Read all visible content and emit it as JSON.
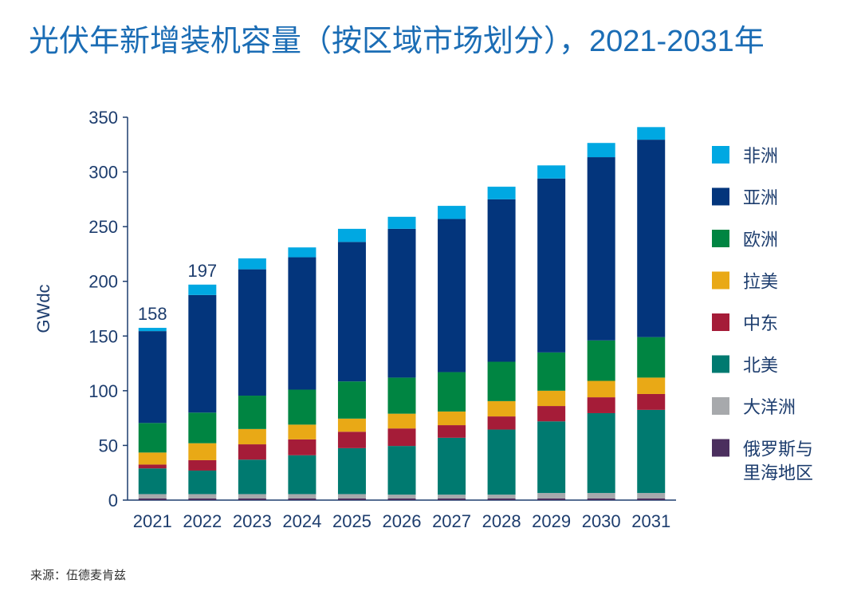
{
  "title": "光伏年新增装机容量（按区域市场划分），2021-2031年",
  "source": "来源：伍德麦肯兹",
  "chart_data": {
    "type": "bar",
    "stacked": true,
    "title": "光伏年新增装机容量（按区域市场划分），2021-2031年",
    "ylabel": "GWdc",
    "ylim": [
      0,
      350
    ],
    "yticks": [
      0,
      50,
      100,
      150,
      200,
      250,
      300,
      350
    ],
    "grid": false,
    "legend_position": "right",
    "categories": [
      "2021",
      "2022",
      "2023",
      "2024",
      "2025",
      "2026",
      "2027",
      "2028",
      "2029",
      "2030",
      "2031"
    ],
    "series": [
      {
        "name": "俄罗斯与里海地区",
        "color": "#4b2f5e",
        "values": [
          1.5,
          1.5,
          1.5,
          1.5,
          1.5,
          1.5,
          1.5,
          1.5,
          1.5,
          1.5,
          1.5
        ]
      },
      {
        "name": "大洋洲",
        "color": "#a7a9ac",
        "values": [
          4,
          4,
          4,
          4,
          4,
          3.5,
          3.5,
          3.5,
          5,
          5,
          5
        ]
      },
      {
        "name": "北美",
        "color": "#007a70",
        "values": [
          23.5,
          21.5,
          31.5,
          35.5,
          42,
          44.5,
          52,
          59.5,
          65.5,
          73,
          76
        ]
      },
      {
        "name": "中东",
        "color": "#a51c38",
        "values": [
          3.5,
          9.5,
          14,
          14.5,
          15,
          16,
          11.5,
          12,
          14,
          14.5,
          14.5
        ]
      },
      {
        "name": "拉美",
        "color": "#e9a916",
        "values": [
          11,
          15.5,
          14,
          13.5,
          12,
          13.5,
          12.5,
          14,
          14,
          15,
          15
        ]
      },
      {
        "name": "欧洲",
        "color": "#008542",
        "values": [
          27,
          28,
          30.5,
          32,
          34,
          33,
          36,
          36,
          35,
          37,
          37
        ]
      },
      {
        "name": "亚洲",
        "color": "#03357c",
        "values": [
          84,
          107.5,
          115.5,
          121,
          127.5,
          136,
          140,
          148.5,
          159,
          167.5,
          180.5
        ]
      },
      {
        "name": "非洲",
        "color": "#00a8e2",
        "values": [
          3,
          9.5,
          10,
          9,
          12,
          11,
          12,
          11.5,
          12,
          13,
          11.5
        ]
      }
    ],
    "legend_order": [
      "非洲",
      "亚洲",
      "欧洲",
      "拉美",
      "中东",
      "北美",
      "大洋洲",
      "俄罗斯与\n里海地区"
    ],
    "annotations": [
      {
        "category": "2021",
        "text": "158"
      },
      {
        "category": "2022",
        "text": "197"
      }
    ]
  }
}
